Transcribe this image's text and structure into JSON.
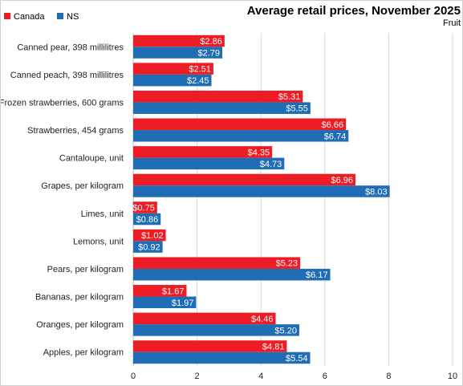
{
  "chart_data": {
    "type": "bar",
    "orientation": "horizontal",
    "title": "Average retail prices, November 2025",
    "subtitle": "Fruit",
    "xlim": [
      0,
      10
    ],
    "xticks": [
      0,
      2,
      4,
      6,
      8,
      10
    ],
    "grid": true,
    "legend_position": "top-left",
    "categories": [
      "Canned pear, 398 millilitres",
      "Canned peach, 398 millilitres",
      "Frozen strawberries, 600 grams",
      "Strawberries, 454 grams",
      "Cantaloupe, unit",
      "Grapes, per kilogram",
      "Limes, unit",
      "Lemons, unit",
      "Pears, per kilogram",
      "Bananas, per kilogram",
      "Oranges, per kilogram",
      "Apples, per kilogram"
    ],
    "series": [
      {
        "name": "Canada",
        "color": "#ee1c25",
        "values": [
          2.86,
          2.51,
          5.31,
          6.66,
          4.35,
          6.96,
          0.75,
          1.02,
          5.23,
          1.67,
          4.46,
          4.81
        ],
        "labels": [
          "$2.86",
          "$2.51",
          "$5.31",
          "$6.66",
          "$4.35",
          "$6.96",
          "$0.75",
          "$1.02",
          "$5.23",
          "$1.67",
          "$4.46",
          "$4.81"
        ]
      },
      {
        "name": "NS",
        "color": "#1f6db5",
        "values": [
          2.79,
          2.45,
          5.55,
          6.74,
          4.73,
          8.03,
          0.86,
          0.92,
          6.17,
          1.97,
          5.2,
          5.54
        ],
        "labels": [
          "$2.79",
          "$2.45",
          "$5.55",
          "$6.74",
          "$4.73",
          "$8.03",
          "$0.86",
          "$0.92",
          "$6.17",
          "$1.97",
          "$5.20",
          "$5.54"
        ]
      }
    ]
  }
}
